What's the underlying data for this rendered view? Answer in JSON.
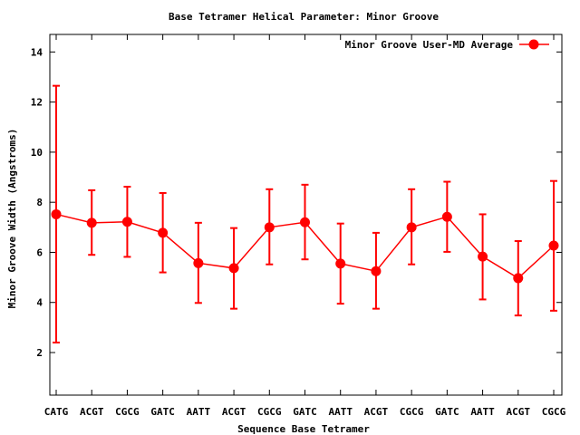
{
  "chart_data": {
    "type": "line",
    "title": "Base Tetramer Helical Parameter: Minor Groove",
    "xlabel": "Sequence Base Tetramer",
    "ylabel": "Minor Groove Width (Angstroms)",
    "ylim": [
      0.3,
      14.7
    ],
    "yticks": [
      2,
      4,
      6,
      8,
      10,
      12,
      14
    ],
    "grid": false,
    "legend_position": "top-right",
    "categories": [
      "CATG",
      "ACGT",
      "CGCG",
      "GATC",
      "AATT",
      "ACGT",
      "CGCG",
      "GATC",
      "AATT",
      "ACGT",
      "CGCG",
      "GATC",
      "AATT",
      "ACGT",
      "CGCG"
    ],
    "series": [
      {
        "name": "Minor Groove User-MD Average",
        "color": "#ff0000",
        "values": [
          7.52,
          7.18,
          7.22,
          6.78,
          5.57,
          5.37,
          7.0,
          7.2,
          5.55,
          5.25,
          7.0,
          7.42,
          5.83,
          4.97,
          6.27
        ],
        "error_low": [
          2.4,
          5.9,
          5.82,
          5.2,
          3.98,
          3.75,
          5.52,
          5.72,
          3.95,
          3.75,
          5.52,
          6.02,
          4.12,
          3.48,
          3.67
        ],
        "error_high": [
          12.65,
          8.48,
          8.62,
          8.37,
          7.18,
          6.97,
          8.52,
          8.7,
          7.15,
          6.78,
          8.52,
          8.82,
          7.52,
          6.45,
          8.85
        ]
      }
    ]
  }
}
